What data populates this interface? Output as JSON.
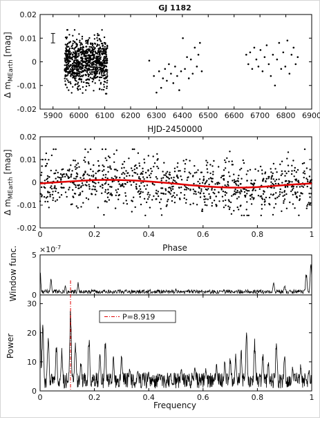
{
  "chart_data": [
    {
      "type": "scatter",
      "title": "GJ 1182",
      "xlabel": "HJD-2450000",
      "ylabel_main": "Δ m",
      "ylabel_sub": "MEarth",
      "ylabel_unit": "[mag]",
      "xlim": [
        5850,
        6900
      ],
      "ylim": [
        -0.02,
        0.02
      ],
      "xticks": [
        "5900",
        "6000",
        "6100",
        "6200",
        "6300",
        "6400",
        "6500",
        "6600",
        "6700",
        "6800",
        "6900"
      ],
      "yticks": [
        "0.02",
        "0.01",
        "0",
        "-0.01",
        "-0.02"
      ],
      "error_bar": {
        "x": 5900,
        "y": 0.01,
        "err": 0.002
      },
      "dense_ranges": [
        {
          "x_from": 5945,
          "x_to": 6110,
          "points": 900,
          "y_sd": 0.0052
        }
      ],
      "series": [
        {
          "values": [
            [
              6272,
              0.0005
            ],
            [
              6290,
              -0.006
            ],
            [
              6300,
              -0.013
            ],
            [
              6310,
              -0.004
            ],
            [
              6318,
              -0.011
            ],
            [
              6325,
              -0.007
            ],
            [
              6333,
              -0.003
            ],
            [
              6340,
              -0.008
            ],
            [
              6348,
              -0.001
            ],
            [
              6356,
              -0.005
            ],
            [
              6365,
              -0.009
            ],
            [
              6372,
              -0.002
            ],
            [
              6380,
              -0.006
            ],
            [
              6388,
              -0.012
            ],
            [
              6395,
              -0.004
            ],
            [
              6402,
              0.01
            ],
            [
              6410,
              -0.003
            ],
            [
              6418,
              0.002
            ],
            [
              6425,
              -0.007
            ],
            [
              6433,
              0.001
            ],
            [
              6440,
              -0.005
            ],
            [
              6448,
              0.006
            ],
            [
              6456,
              -0.002
            ],
            [
              6462,
              0.003
            ],
            [
              6468,
              0.008
            ],
            [
              6475,
              -0.004
            ],
            [
              6647,
              0.003
            ],
            [
              6655,
              -0.001
            ],
            [
              6662,
              0.004
            ],
            [
              6670,
              -0.003
            ],
            [
              6678,
              0.006
            ],
            [
              6686,
              0.001
            ],
            [
              6694,
              -0.002
            ],
            [
              6702,
              0.005
            ],
            [
              6710,
              -0.004
            ],
            [
              6718,
              0.002
            ],
            [
              6726,
              0.007
            ],
            [
              6734,
              -0.001
            ],
            [
              6742,
              -0.006
            ],
            [
              6750,
              0.003
            ],
            [
              6758,
              -0.01
            ],
            [
              6766,
              0.001
            ],
            [
              6774,
              0.008
            ],
            [
              6782,
              -0.003
            ],
            [
              6790,
              0.004
            ],
            [
              6798,
              -0.002
            ],
            [
              6806,
              0.009
            ],
            [
              6814,
              -0.005
            ],
            [
              6822,
              0.003
            ],
            [
              6830,
              0.006
            ],
            [
              6838,
              -0.001
            ],
            [
              6846,
              0.002
            ]
          ]
        }
      ]
    },
    {
      "type": "scatter",
      "xlabel": "Phase",
      "ylabel_main": "Δ m",
      "ylabel_sub": "MEarth",
      "ylabel_unit": "[mag]",
      "xlim": [
        0,
        1
      ],
      "ylim": [
        -0.02,
        0.02
      ],
      "xticks": [
        "0",
        "0.2",
        "0.4",
        "0.6",
        "0.8",
        "1"
      ],
      "yticks": [
        "0.02",
        "0.01",
        "0",
        "-0.01",
        "-0.02"
      ],
      "scatter_points": 960,
      "scatter_y_sd": 0.0055,
      "fit_curve": {
        "color": "#e00000",
        "x": [
          0,
          0.05,
          0.1,
          0.15,
          0.2,
          0.25,
          0.3,
          0.35,
          0.4,
          0.45,
          0.5,
          0.55,
          0.6,
          0.65,
          0.7,
          0.75,
          0.8,
          0.85,
          0.9,
          0.95,
          1.0
        ],
        "y": [
          -0.0005,
          -0.0001,
          0.0003,
          0.0007,
          0.001,
          0.0011,
          0.001,
          0.0008,
          0.0004,
          -0.0001,
          -0.0006,
          -0.0012,
          -0.0017,
          -0.0021,
          -0.0023,
          -0.0023,
          -0.0021,
          -0.0017,
          -0.0012,
          -0.0008,
          -0.0005
        ]
      }
    },
    {
      "type": "line",
      "ylabel": "Window func.",
      "exponent_label": "×10",
      "exponent_power": "-7",
      "xlim": [
        0,
        1
      ],
      "ylim": [
        0,
        5
      ],
      "yticks": [
        "0",
        "5"
      ],
      "peaks": [
        [
          0.0,
          3.2
        ],
        [
          0.04,
          2.1
        ],
        [
          0.093,
          1.2
        ],
        [
          0.14,
          1.6
        ],
        [
          0.5,
          0.8
        ],
        [
          0.86,
          1.7
        ],
        [
          0.9,
          1.3
        ],
        [
          0.98,
          2.9
        ],
        [
          0.997,
          4.5
        ]
      ]
    },
    {
      "type": "line",
      "xlabel": "Frequency",
      "ylabel": "Power",
      "xlim": [
        0,
        1
      ],
      "ylim": [
        0,
        33
      ],
      "xticks": [
        "0",
        "0.2",
        "0.4",
        "0.6",
        "0.8",
        "1"
      ],
      "yticks": [
        "0",
        "10",
        "20",
        "30"
      ],
      "legend": {
        "label": "P=8.919",
        "position": "top-center"
      },
      "period_marker": {
        "frequency": 0.1121,
        "color": "#e00000"
      },
      "peaks": [
        [
          0.0,
          27
        ],
        [
          0.01,
          24
        ],
        [
          0.03,
          21
        ],
        [
          0.06,
          17
        ],
        [
          0.08,
          15
        ],
        [
          0.112,
          29
        ],
        [
          0.13,
          19
        ],
        [
          0.15,
          11
        ],
        [
          0.18,
          20
        ],
        [
          0.22,
          14
        ],
        [
          0.24,
          18
        ],
        [
          0.27,
          12
        ],
        [
          0.3,
          13
        ],
        [
          0.33,
          9
        ],
        [
          0.36,
          8
        ],
        [
          0.4,
          7
        ],
        [
          0.44,
          6
        ],
        [
          0.48,
          7
        ],
        [
          0.52,
          8
        ],
        [
          0.57,
          9
        ],
        [
          0.61,
          8
        ],
        [
          0.65,
          10
        ],
        [
          0.68,
          11
        ],
        [
          0.7,
          12
        ],
        [
          0.72,
          13
        ],
        [
          0.74,
          15
        ],
        [
          0.76,
          21
        ],
        [
          0.79,
          18
        ],
        [
          0.82,
          14
        ],
        [
          0.84,
          11
        ],
        [
          0.87,
          19
        ],
        [
          0.9,
          13
        ],
        [
          0.93,
          9
        ],
        [
          0.96,
          10
        ],
        [
          0.99,
          8
        ]
      ]
    }
  ]
}
